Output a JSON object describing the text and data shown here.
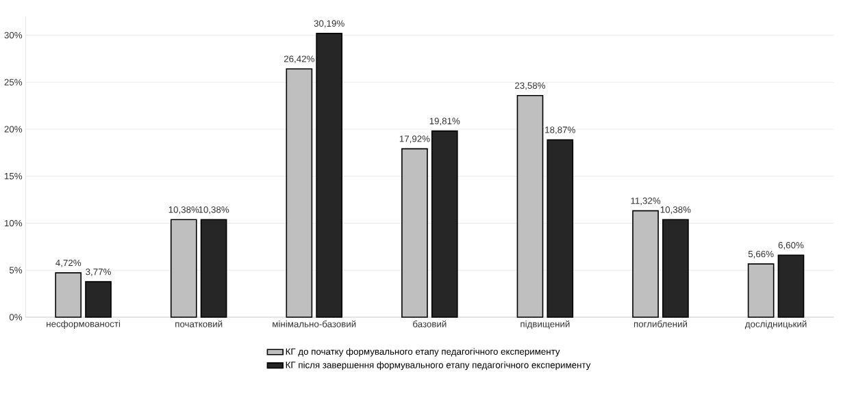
{
  "chart_data": {
    "type": "bar",
    "categories": [
      "несформованості",
      "початковий",
      "мінімально-базовий",
      "базовий",
      "підвищений",
      "поглиблений",
      "дослідницький"
    ],
    "series": [
      {
        "name": "КГ до початку формувального етапу педагогічного експерименту",
        "color": "#bfbfbf",
        "values": [
          4.72,
          10.38,
          26.42,
          17.92,
          23.58,
          11.32,
          5.66
        ],
        "value_labels": [
          "4,72%",
          "10,38%",
          "26,42%",
          "17,92%",
          "23,58%",
          "11,32%",
          "5,66%"
        ]
      },
      {
        "name": "КГ після завершення формувального етапу педагогічного експерименту",
        "color": "#262626",
        "values": [
          3.77,
          10.38,
          30.19,
          19.81,
          18.87,
          10.38,
          6.6
        ],
        "value_labels": [
          "3,77%",
          "10,38%",
          "30,19%",
          "19,81%",
          "18,87%",
          "10,38%",
          "6,60%"
        ]
      }
    ],
    "ylim": [
      0,
      32
    ],
    "yticks": [
      {
        "value": 0,
        "label": "0%"
      },
      {
        "value": 5,
        "label": "5%"
      },
      {
        "value": 10,
        "label": "10%"
      },
      {
        "value": 15,
        "label": "15%"
      },
      {
        "value": 20,
        "label": "20%"
      },
      {
        "value": 25,
        "label": "25%"
      },
      {
        "value": 30,
        "label": "30%"
      }
    ],
    "grid": "y",
    "legend": "bottom"
  }
}
